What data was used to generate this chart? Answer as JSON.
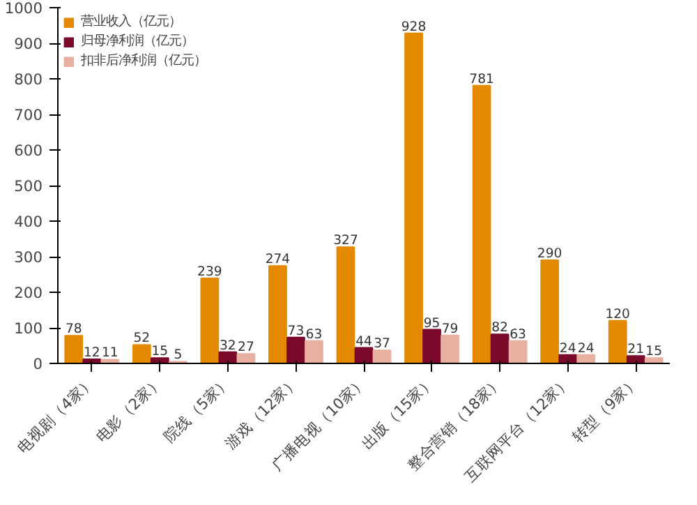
{
  "chart_data": {
    "type": "bar",
    "categories": [
      "电视剧（4家）",
      "电影（2家）",
      "院线（5家）",
      "游戏（12家）",
      "广播电视（10家）",
      "出版（15家）",
      "整合营销（18家）",
      "互联网平台（12家）",
      "转型（9家）"
    ],
    "series": [
      {
        "name": "营业收入（亿元）",
        "color": "#e38a00",
        "values": [
          78,
          52,
          239,
          274,
          327,
          928,
          781,
          290,
          120
        ]
      },
      {
        "name": "归母净利润（亿元）",
        "color": "#7b0a2a",
        "values": [
          12,
          15,
          32,
          73,
          44,
          95,
          82,
          24,
          21
        ]
      },
      {
        "name": "扣非后净利润（亿元）",
        "color": "#e8b0a0",
        "values": [
          11,
          5,
          27,
          63,
          37,
          79,
          63,
          24,
          15
        ]
      }
    ],
    "ylim": [
      0,
      1000
    ],
    "yticks": [
      0,
      100,
      200,
      300,
      400,
      500,
      600,
      700,
      800,
      900,
      1000
    ],
    "data_labels": true,
    "legend": "top",
    "grid": false
  }
}
